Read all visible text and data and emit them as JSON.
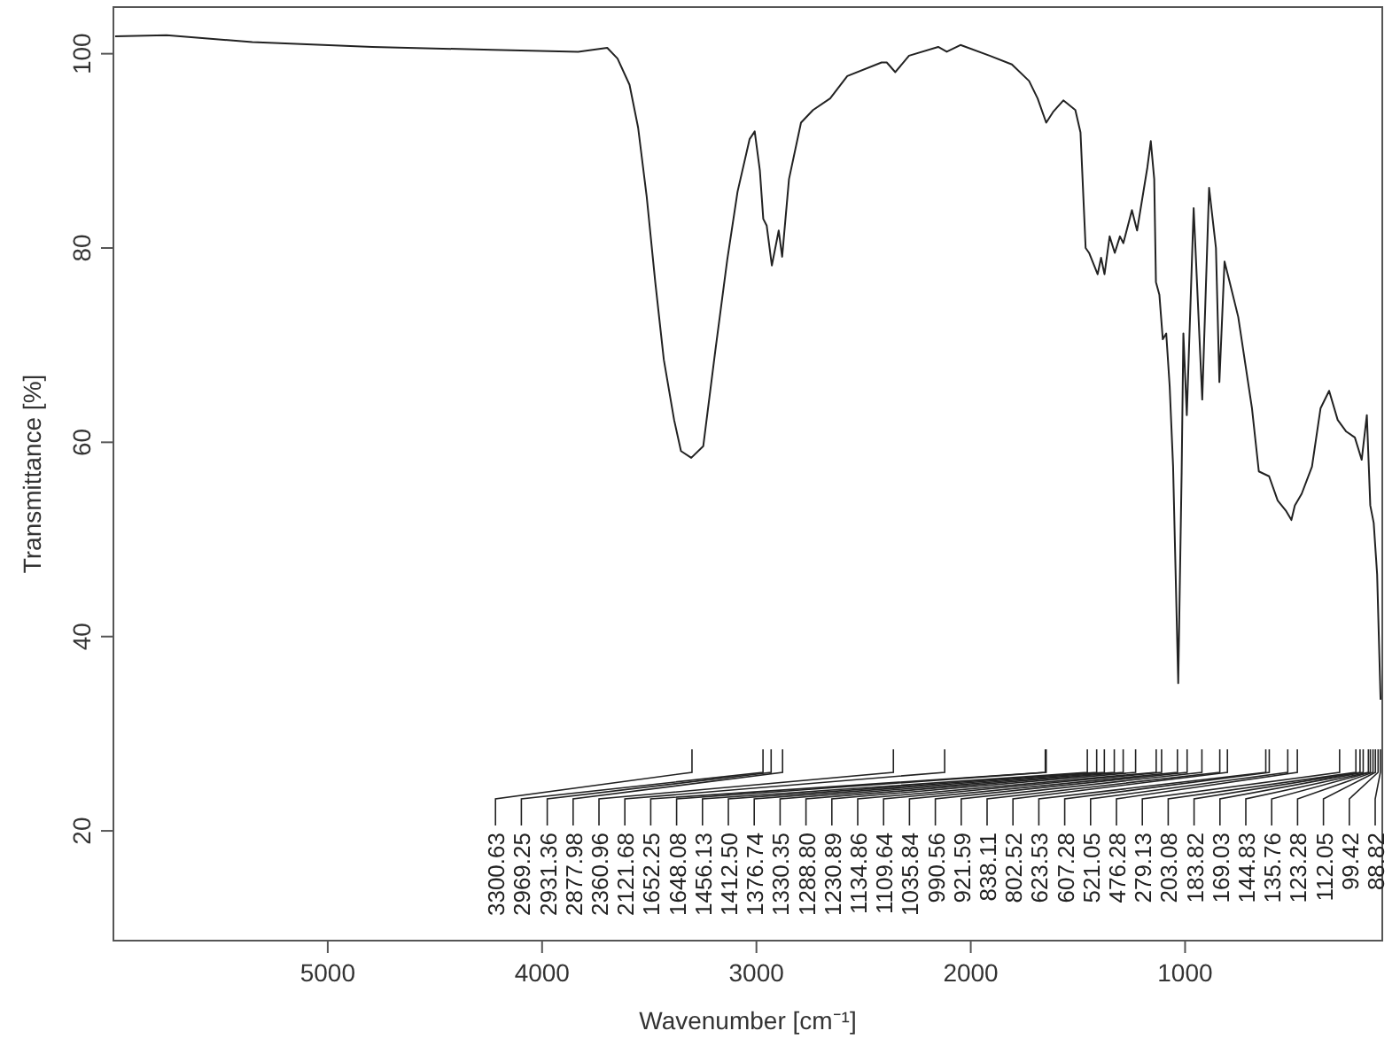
{
  "chart_data": {
    "type": "line",
    "xlabel": "Wavenumber [cm⁻¹]",
    "ylabel": "Transmittance [%]",
    "color": "#222222",
    "xlim": [
      6000,
      80
    ],
    "ylim": [
      8.7,
      104.8
    ],
    "xticks": [
      5000,
      4000,
      3000,
      2000,
      1000
    ],
    "yticks": [
      20,
      40,
      60,
      80,
      100
    ],
    "x": [
      5992,
      5752,
      5352,
      4792,
      4232,
      3832,
      3696,
      3648,
      3592,
      3552,
      3512,
      3472,
      3432,
      3384,
      3352,
      3304,
      3248,
      3192,
      3136,
      3088,
      3032,
      3008,
      2984,
      2968,
      2952,
      2928,
      2896,
      2880,
      2848,
      2792,
      2736,
      2656,
      2576,
      2416,
      2392,
      2352,
      2288,
      2152,
      2112,
      2048,
      1912,
      1808,
      1728,
      1688,
      1648,
      1616,
      1568,
      1512,
      1488,
      1464,
      1448,
      1408,
      1392,
      1376,
      1352,
      1328,
      1304,
      1288,
      1248,
      1224,
      1176,
      1160,
      1144,
      1136,
      1120,
      1104,
      1088,
      1072,
      1056,
      1032,
      1016,
      1008,
      992,
      960,
      920,
      888,
      856,
      840,
      816,
      792,
      752,
      688,
      656,
      608,
      568,
      528,
      504,
      488,
      456,
      408,
      368,
      328,
      288,
      248,
      208,
      176,
      152,
      136,
      120,
      104,
      88
    ],
    "values": [
      101.8,
      101.9,
      101.2,
      100.7,
      100.4,
      100.2,
      100.6,
      99.5,
      96.8,
      92.4,
      85.3,
      76.5,
      68.5,
      62.3,
      59.1,
      58.4,
      59.6,
      69.4,
      78.8,
      85.8,
      91.2,
      92,
      88,
      83,
      82.3,
      78.2,
      81.8,
      79.1,
      87.1,
      92.9,
      94.2,
      95.4,
      97.7,
      99.1,
      99.1,
      98.1,
      99.8,
      100.7,
      100.2,
      100.9,
      99.8,
      98.9,
      97.2,
      95.4,
      92.9,
      94,
      95.2,
      94.2,
      91.9,
      80,
      79.5,
      77.3,
      79,
      77.3,
      81.2,
      79.5,
      81.2,
      80.5,
      83.9,
      81.8,
      88.3,
      91,
      87.1,
      76.5,
      75.2,
      70.6,
      71.2,
      65.8,
      57.5,
      35.2,
      57,
      71.2,
      62.8,
      84.1,
      64.4,
      86.2,
      80,
      66.2,
      78.6,
      76.5,
      72.9,
      63.5,
      57,
      56.5,
      54,
      52.9,
      52,
      53.5,
      54.7,
      57.5,
      63.5,
      65.3,
      62.3,
      61.1,
      60.5,
      58.2,
      62.8,
      53.5,
      51.7,
      46.4,
      33.5
    ],
    "annotations": [
      {
        "text": "3300.63",
        "x": 3300.63
      },
      {
        "text": "2969.25",
        "x": 2969.25
      },
      {
        "text": "2931.36",
        "x": 2931.36
      },
      {
        "text": "2877.98",
        "x": 2877.98
      },
      {
        "text": "2360.96",
        "x": 2360.96
      },
      {
        "text": "2121.68",
        "x": 2121.68
      },
      {
        "text": "1652.25",
        "x": 1652.25
      },
      {
        "text": "1648.08",
        "x": 1648.08
      },
      {
        "text": "1456.13",
        "x": 1456.13
      },
      {
        "text": "1412.50",
        "x": 1412.5
      },
      {
        "text": "1376.74",
        "x": 1376.74
      },
      {
        "text": "1330.35",
        "x": 1330.35
      },
      {
        "text": "1288.80",
        "x": 1288.8
      },
      {
        "text": "1230.89",
        "x": 1230.89
      },
      {
        "text": "1134.86",
        "x": 1134.86
      },
      {
        "text": "1109.64",
        "x": 1109.64
      },
      {
        "text": "1035.84",
        "x": 1035.84
      },
      {
        "text": "990.56",
        "x": 990.56
      },
      {
        "text": "921.59",
        "x": 921.59
      },
      {
        "text": "838.11",
        "x": 838.11
      },
      {
        "text": "802.52",
        "x": 802.52
      },
      {
        "text": "623.53",
        "x": 623.53
      },
      {
        "text": "607.28",
        "x": 607.28
      },
      {
        "text": "521.05",
        "x": 521.05
      },
      {
        "text": "476.28",
        "x": 476.28
      },
      {
        "text": "279.13",
        "x": 279.13
      },
      {
        "text": "203.08",
        "x": 203.08
      },
      {
        "text": "183.82",
        "x": 183.82
      },
      {
        "text": "169.03",
        "x": 169.03
      },
      {
        "text": "144.83",
        "x": 144.83
      },
      {
        "text": "135.76",
        "x": 135.76
      },
      {
        "text": "123.28",
        "x": 123.28
      },
      {
        "text": "112.05",
        "x": 112.05
      },
      {
        "text": "99.42",
        "x": 99.42
      },
      {
        "text": "88.82",
        "x": 88.82
      }
    ]
  }
}
